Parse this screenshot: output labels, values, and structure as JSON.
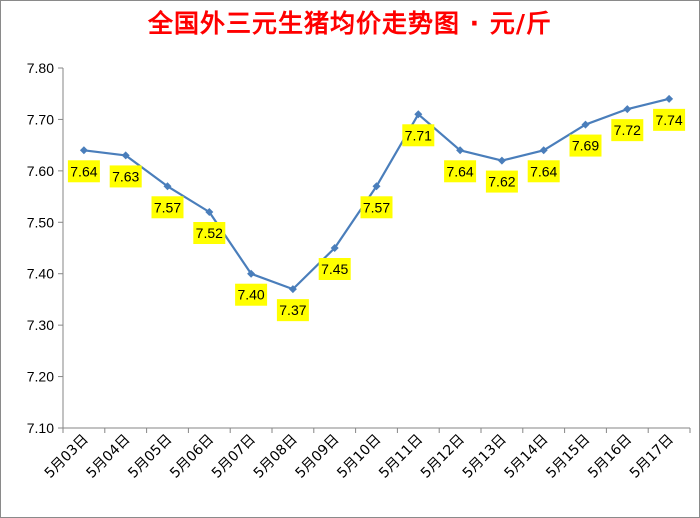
{
  "chart_data": {
    "type": "line",
    "title": "全国外三元生猪均价走势图 · 元/斤",
    "xlabel": "",
    "ylabel": "",
    "categories": [
      "5月03日",
      "5月04日",
      "5月05日",
      "5月06日",
      "5月07日",
      "5月08日",
      "5月09日",
      "5月10日",
      "5月11日",
      "5月12日",
      "5月13日",
      "5月14日",
      "5月15日",
      "5月16日",
      "5月17日"
    ],
    "series": [
      {
        "values": [
          7.64,
          7.63,
          7.57,
          7.52,
          7.4,
          7.37,
          7.45,
          7.57,
          7.71,
          7.64,
          7.62,
          7.64,
          7.69,
          7.72,
          7.74
        ],
        "labels": [
          "7.64",
          "7.63",
          "7.57",
          "7.52",
          "7.40",
          "7.37",
          "7.45",
          "7.57",
          "7.71",
          "7.64",
          "7.62",
          "7.64",
          "7.69",
          "7.72",
          "7.74"
        ]
      }
    ],
    "ylim": [
      7.1,
      7.8
    ],
    "yticks": [
      "7.10",
      "7.20",
      "7.30",
      "7.40",
      "7.50",
      "7.60",
      "7.70",
      "7.80"
    ],
    "grid": false,
    "colors": {
      "line": "#4a7ebb",
      "marker": "#4a7ebb",
      "label_bg": "#ffff00",
      "title": "#ff0000",
      "axis": "#868686"
    }
  }
}
